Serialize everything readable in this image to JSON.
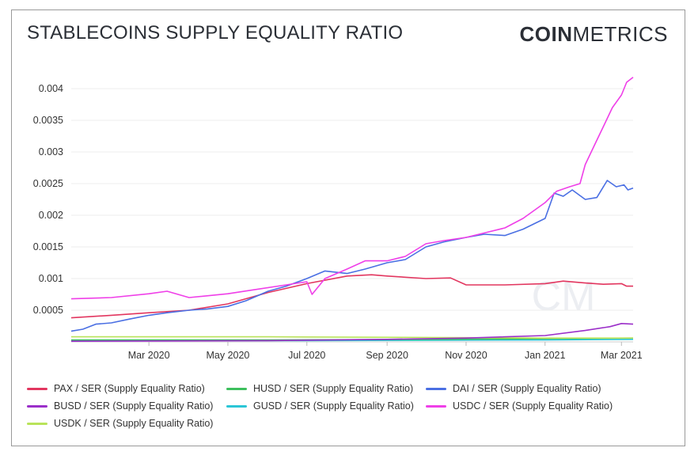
{
  "header": {
    "title": "STABLECOINS SUPPLY EQUALITY RATIO",
    "brand_bold": "COIN",
    "brand_light": "METRICS"
  },
  "watermark": "CM",
  "chart_data": {
    "type": "line",
    "title": "STABLECOINS SUPPLY EQUALITY RATIO",
    "xlabel": "",
    "ylabel": "",
    "x_ticks": [
      "Mar 2020",
      "May 2020",
      "Jul 2020",
      "Sep 2020",
      "Nov 2020",
      "Jan 2021",
      "Mar 2021"
    ],
    "y_ticks": [
      "0.0005",
      "0.001",
      "0.0015",
      "0.002",
      "0.0025",
      "0.003",
      "0.0035",
      "0.004"
    ],
    "ylim": [
      0,
      0.0042
    ],
    "xlim": [
      "2020-01-01",
      "2021-03-10"
    ],
    "grid": true,
    "legend_position": "bottom",
    "series": [
      {
        "name": "PAX / SER (Supply Equality Ratio)",
        "color": "#e2365f",
        "points": [
          [
            "2020-01-01",
            0.00038
          ],
          [
            "2020-02-01",
            0.00042
          ],
          [
            "2020-03-01",
            0.00046
          ],
          [
            "2020-04-01",
            0.0005
          ],
          [
            "2020-05-01",
            0.0006
          ],
          [
            "2020-06-01",
            0.00078
          ],
          [
            "2020-07-01",
            0.00092
          ],
          [
            "2020-08-01",
            0.00104
          ],
          [
            "2020-08-20",
            0.00106
          ],
          [
            "2020-09-01",
            0.00104
          ],
          [
            "2020-10-01",
            0.001
          ],
          [
            "2020-10-20",
            0.00101
          ],
          [
            "2020-11-01",
            0.0009
          ],
          [
            "2020-12-01",
            0.0009
          ],
          [
            "2021-01-01",
            0.00092
          ],
          [
            "2021-01-15",
            0.00096
          ],
          [
            "2021-02-01",
            0.00093
          ],
          [
            "2021-02-15",
            0.00091
          ],
          [
            "2021-03-01",
            0.00092
          ],
          [
            "2021-03-05",
            0.00088
          ],
          [
            "2021-03-10",
            0.00088
          ]
        ]
      },
      {
        "name": "HUSD / SER (Supply Equality Ratio)",
        "color": "#3dbf5d",
        "points": [
          [
            "2020-01-01",
            3e-05
          ],
          [
            "2020-06-01",
            3e-05
          ],
          [
            "2020-10-01",
            4e-05
          ],
          [
            "2021-01-01",
            5e-05
          ],
          [
            "2021-03-10",
            6e-05
          ]
        ]
      },
      {
        "name": "DAI / SER (Supply Equality Ratio)",
        "color": "#4a6fe3",
        "points": [
          [
            "2020-01-01",
            0.00017
          ],
          [
            "2020-01-10",
            0.0002
          ],
          [
            "2020-01-20",
            0.00028
          ],
          [
            "2020-02-01",
            0.0003
          ],
          [
            "2020-02-15",
            0.00036
          ],
          [
            "2020-03-01",
            0.00042
          ],
          [
            "2020-03-15",
            0.00046
          ],
          [
            "2020-04-01",
            0.0005
          ],
          [
            "2020-04-15",
            0.00052
          ],
          [
            "2020-05-01",
            0.00056
          ],
          [
            "2020-05-15",
            0.00065
          ],
          [
            "2020-06-01",
            0.0008
          ],
          [
            "2020-06-15",
            0.00088
          ],
          [
            "2020-07-01",
            0.001
          ],
          [
            "2020-07-15",
            0.00112
          ],
          [
            "2020-08-01",
            0.00108
          ],
          [
            "2020-08-15",
            0.00115
          ],
          [
            "2020-09-01",
            0.00125
          ],
          [
            "2020-09-15",
            0.0013
          ],
          [
            "2020-10-01",
            0.0015
          ],
          [
            "2020-10-15",
            0.00158
          ],
          [
            "2020-11-01",
            0.00165
          ],
          [
            "2020-11-15",
            0.0017
          ],
          [
            "2020-12-01",
            0.00168
          ],
          [
            "2020-12-15",
            0.00178
          ],
          [
            "2021-01-01",
            0.00195
          ],
          [
            "2021-01-08",
            0.00235
          ],
          [
            "2021-01-15",
            0.0023
          ],
          [
            "2021-01-22",
            0.0024
          ],
          [
            "2021-02-01",
            0.00225
          ],
          [
            "2021-02-10",
            0.00228
          ],
          [
            "2021-02-18",
            0.00255
          ],
          [
            "2021-02-25",
            0.00245
          ],
          [
            "2021-03-03",
            0.00248
          ],
          [
            "2021-03-06",
            0.0024
          ],
          [
            "2021-03-10",
            0.00243
          ]
        ]
      },
      {
        "name": "BUSD / SER (Supply Equality Ratio)",
        "color": "#9b2fc9",
        "points": [
          [
            "2020-01-01",
            1e-05
          ],
          [
            "2020-06-01",
            2e-05
          ],
          [
            "2020-09-01",
            4e-05
          ],
          [
            "2020-11-01",
            6e-05
          ],
          [
            "2021-01-01",
            0.0001
          ],
          [
            "2021-02-01",
            0.00018
          ],
          [
            "2021-02-20",
            0.00024
          ],
          [
            "2021-03-01",
            0.00029
          ],
          [
            "2021-03-10",
            0.00028
          ]
        ]
      },
      {
        "name": "GUSD / SER (Supply Equality Ratio)",
        "color": "#2bc6d6",
        "points": [
          [
            "2020-01-01",
            2e-05
          ],
          [
            "2020-07-01",
            2e-05
          ],
          [
            "2021-01-01",
            3e-05
          ],
          [
            "2021-03-10",
            4e-05
          ]
        ]
      },
      {
        "name": "USDC / SER (Supply Equality Ratio)",
        "color": "#ef3fe8",
        "points": [
          [
            "2020-01-01",
            0.00068
          ],
          [
            "2020-02-01",
            0.0007
          ],
          [
            "2020-03-01",
            0.00076
          ],
          [
            "2020-03-15",
            0.0008
          ],
          [
            "2020-04-01",
            0.0007
          ],
          [
            "2020-05-01",
            0.00076
          ],
          [
            "2020-05-20",
            0.00082
          ],
          [
            "2020-06-15",
            0.0009
          ],
          [
            "2020-07-01",
            0.00095
          ],
          [
            "2020-07-05",
            0.00075
          ],
          [
            "2020-07-15",
            0.001
          ],
          [
            "2020-08-01",
            0.00115
          ],
          [
            "2020-08-15",
            0.00128
          ],
          [
            "2020-09-01",
            0.00128
          ],
          [
            "2020-09-15",
            0.00135
          ],
          [
            "2020-10-01",
            0.00155
          ],
          [
            "2020-10-15",
            0.0016
          ],
          [
            "2020-11-01",
            0.00165
          ],
          [
            "2020-11-15",
            0.00172
          ],
          [
            "2020-12-01",
            0.0018
          ],
          [
            "2020-12-15",
            0.00195
          ],
          [
            "2021-01-01",
            0.0022
          ],
          [
            "2021-01-10",
            0.00238
          ],
          [
            "2021-01-20",
            0.00245
          ],
          [
            "2021-01-28",
            0.0025
          ],
          [
            "2021-02-01",
            0.0028
          ],
          [
            "2021-02-08",
            0.0031
          ],
          [
            "2021-02-15",
            0.0034
          ],
          [
            "2021-02-22",
            0.0037
          ],
          [
            "2021-03-01",
            0.0039
          ],
          [
            "2021-03-05",
            0.0041
          ],
          [
            "2021-03-10",
            0.00418
          ]
        ]
      },
      {
        "name": "USDK / SER (Supply Equality Ratio)",
        "color": "#b9e35a",
        "points": [
          [
            "2020-01-01",
            8e-05
          ],
          [
            "2020-06-01",
            8e-05
          ],
          [
            "2020-10-01",
            7e-05
          ],
          [
            "2021-01-01",
            6e-05
          ],
          [
            "2021-03-10",
            6e-05
          ]
        ]
      }
    ]
  }
}
